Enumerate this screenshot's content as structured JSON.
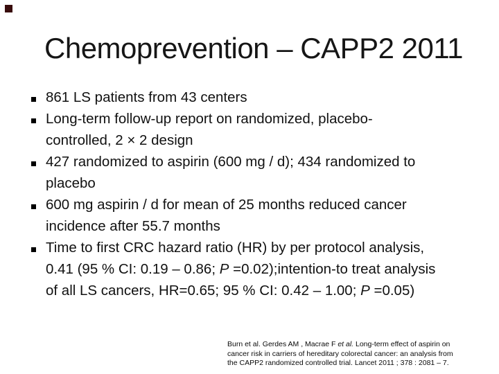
{
  "slide": {
    "title": "Chemoprevention – CAPP2 2011",
    "bullets": [
      {
        "lines": [
          [
            {
              "t": "861 LS patients from 43 centers"
            }
          ]
        ]
      },
      {
        "lines": [
          [
            {
              "t": "Long-term follow-up report on randomized, placebo-"
            }
          ],
          [
            {
              "t": "controlled, 2 × 2 design"
            }
          ]
        ]
      },
      {
        "lines": [
          [
            {
              "t": "427 randomized to aspirin (600 mg / d); 434 randomized to"
            }
          ],
          [
            {
              "t": "placebo"
            }
          ]
        ]
      },
      {
        "lines": [
          [
            {
              "t": "600 mg aspirin / d for mean of 25 months reduced cancer"
            }
          ],
          [
            {
              "t": "incidence after 55.7 months"
            }
          ]
        ]
      },
      {
        "lines": [
          [
            {
              "t": "Time to first CRC hazard ratio (HR) by per protocol analysis,"
            }
          ],
          [
            {
              "t": "0.41 (95 % CI: 0.19 – 0.86; "
            },
            {
              "t": "P",
              "i": true
            },
            {
              "t": " =0.02);intention-to treat analysis"
            }
          ],
          [
            {
              "t": "of all LS cancers, HR=0.65; 95 % CI: 0.42 – 1.00; "
            },
            {
              "t": "P",
              "i": true
            },
            {
              "t": " =0.05)"
            }
          ]
        ]
      }
    ],
    "citation_lines": [
      [
        {
          "t": "Burn et al. Gerdes AM , Macrae F "
        },
        {
          "t": "et al.",
          "i": true
        },
        {
          "t": " Long-term effect of aspirin on"
        }
      ],
      [
        {
          "t": "cancer risk in carriers of hereditary colorectal cancer: an analysis from"
        }
      ],
      [
        {
          "t": "the CAPP2 randomized controlled trial. Lancet 2011 ; 378 : 2081 – 7."
        }
      ]
    ],
    "colors": {
      "background": "#ffffff",
      "text": "#111111",
      "bullet_marker": "#000000",
      "corner_mark": "#380c0c"
    }
  }
}
